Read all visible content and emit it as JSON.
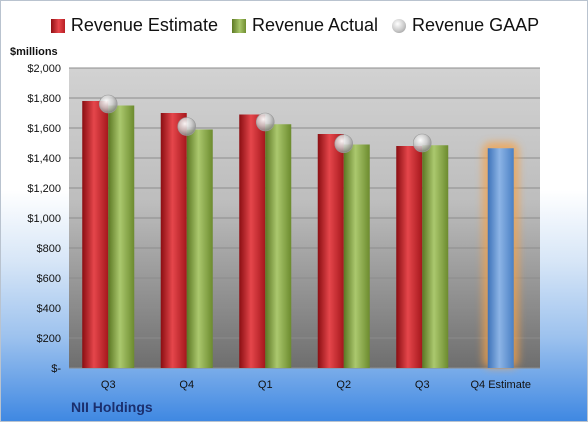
{
  "legend": {
    "estimate": "Revenue Estimate",
    "actual": "Revenue Actual",
    "gaap": "Revenue GAAP"
  },
  "unit_label": "$millions",
  "company": "NII Holdings",
  "colors": {
    "estimate": "#c8262b",
    "actual": "#8fae4c",
    "gaap": "#bfbfbf",
    "future_estimate": "#6a9bd8",
    "future_glow": "#f5a24a"
  },
  "chart_data": {
    "type": "bar",
    "categories": [
      "Q3",
      "Q4",
      "Q1",
      "Q2",
      "Q3",
      "Q4 Estimate"
    ],
    "series": [
      {
        "name": "Revenue Estimate",
        "values": [
          1780,
          1700,
          1690,
          1560,
          1480,
          1465
        ]
      },
      {
        "name": "Revenue Actual",
        "values": [
          1750,
          1590,
          1625,
          1490,
          1485,
          null
        ]
      },
      {
        "name": "Revenue GAAP",
        "values": [
          1760,
          1610,
          1640,
          1495,
          1500,
          null
        ]
      }
    ],
    "ylabel": "$millions",
    "ylim": [
      0,
      2000
    ],
    "yticks": [
      0,
      200,
      400,
      600,
      800,
      1000,
      1200,
      1400,
      1600,
      1800,
      2000
    ],
    "ytick_labels": [
      "$-",
      "$200",
      "$400",
      "$600",
      "$800",
      "$1,000",
      "$1,200",
      "$1,400",
      "$1,600",
      "$1,800",
      "$2,000"
    ],
    "grid": true,
    "legend_position": "top"
  }
}
